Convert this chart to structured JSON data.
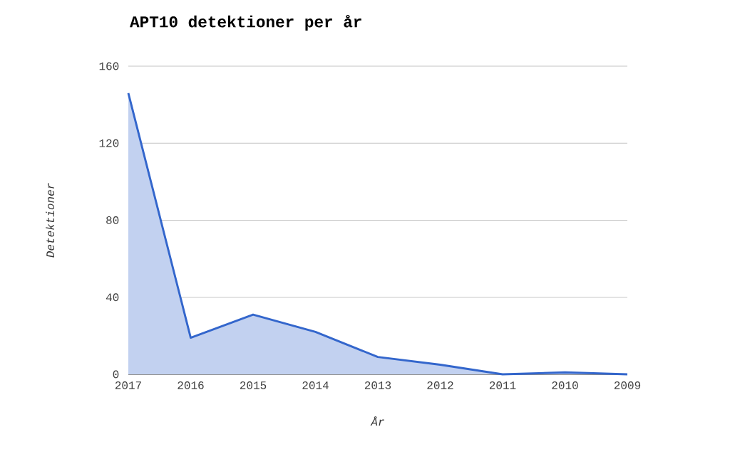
{
  "chart_data": {
    "type": "area",
    "title": "APT10 detektioner per år",
    "xlabel": "År",
    "ylabel": "Detektioner",
    "categories": [
      "2017",
      "2016",
      "2015",
      "2014",
      "2013",
      "2012",
      "2011",
      "2010",
      "2009"
    ],
    "values": [
      146,
      19,
      31,
      22,
      9,
      5,
      0,
      1,
      0
    ],
    "color": "#3366cc",
    "ylim": [
      0,
      160
    ],
    "yticks": [
      0,
      40,
      80,
      120,
      160
    ],
    "grid": "y"
  }
}
